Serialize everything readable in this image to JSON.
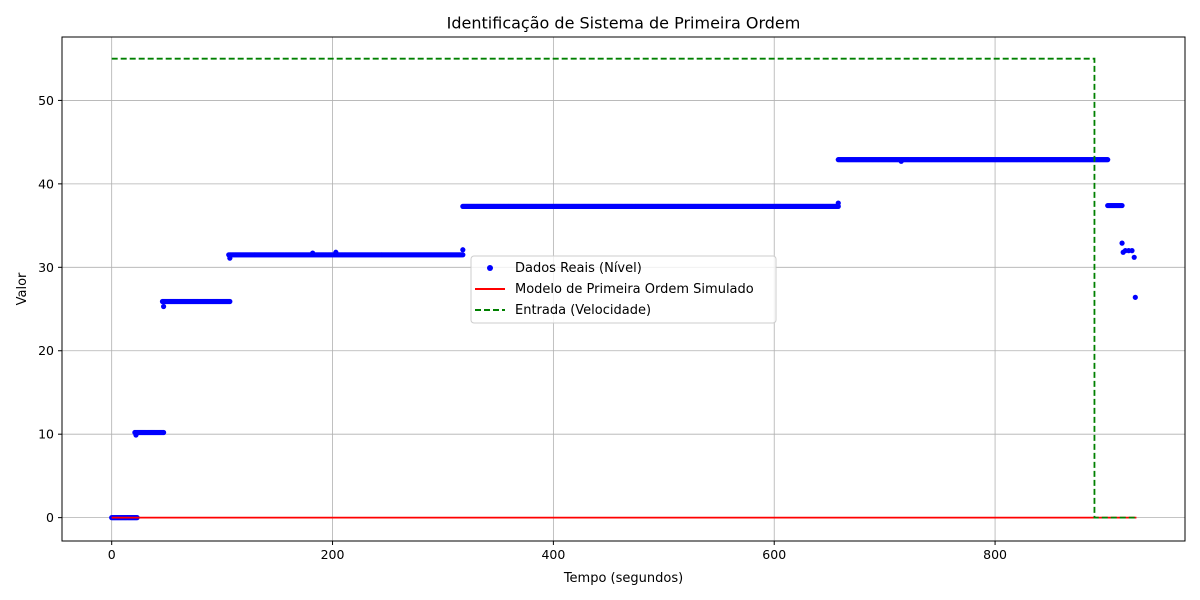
{
  "chart_data": {
    "type": "scatter",
    "title": "Identificação de Sistema de Primeira Ordem",
    "xlabel": "Tempo (segundos)",
    "ylabel": "Valor",
    "xlim": [
      -45,
      972
    ],
    "ylim": [
      -2.8,
      57.6
    ],
    "xticks": [
      0,
      200,
      400,
      600,
      800
    ],
    "yticks": [
      0,
      10,
      20,
      30,
      40,
      50
    ],
    "grid": true,
    "legend_position": "center",
    "colors": {
      "scatter": "#0000ff",
      "model": "#ff0000",
      "input": "#008000",
      "grid": "#b0b0b0"
    },
    "series": [
      {
        "name": "Dados Reais (Nível)",
        "type": "scatter",
        "segments": [
          {
            "x_start": 0,
            "x_end": 23,
            "y": 0.0
          },
          {
            "x_start": 21,
            "x_end": 47,
            "y": 10.2
          },
          {
            "x_start": 46,
            "x_end": 107,
            "y": 25.9
          },
          {
            "x_start": 106,
            "x_end": 318,
            "y": 31.5
          },
          {
            "x_start": 318,
            "x_end": 658,
            "y": 37.3
          },
          {
            "x_start": 658,
            "x_end": 902,
            "y": 42.9
          },
          {
            "x_start": 902,
            "x_end": 915,
            "y": 37.4
          }
        ],
        "points": [
          {
            "x": 22,
            "y": 9.9
          },
          {
            "x": 47,
            "y": 25.3
          },
          {
            "x": 107,
            "y": 31.1
          },
          {
            "x": 182,
            "y": 31.7
          },
          {
            "x": 203,
            "y": 31.8
          },
          {
            "x": 318,
            "y": 32.1
          },
          {
            "x": 658,
            "y": 37.7
          },
          {
            "x": 715,
            "y": 42.7
          },
          {
            "x": 915,
            "y": 32.9
          },
          {
            "x": 916,
            "y": 31.8
          },
          {
            "x": 918,
            "y": 32.0
          },
          {
            "x": 921,
            "y": 32.0
          },
          {
            "x": 924,
            "y": 32.0
          },
          {
            "x": 926,
            "y": 31.2
          },
          {
            "x": 927,
            "y": 26.4
          }
        ]
      },
      {
        "name": "Modelo de Primeira Ordem Simulado",
        "type": "line",
        "x": [
          0,
          928
        ],
        "y": [
          0,
          0
        ]
      },
      {
        "name": "Entrada (Velocidade)",
        "type": "step",
        "x": [
          0,
          890,
          890,
          928
        ],
        "y": [
          55,
          55,
          0,
          0
        ]
      }
    ]
  }
}
